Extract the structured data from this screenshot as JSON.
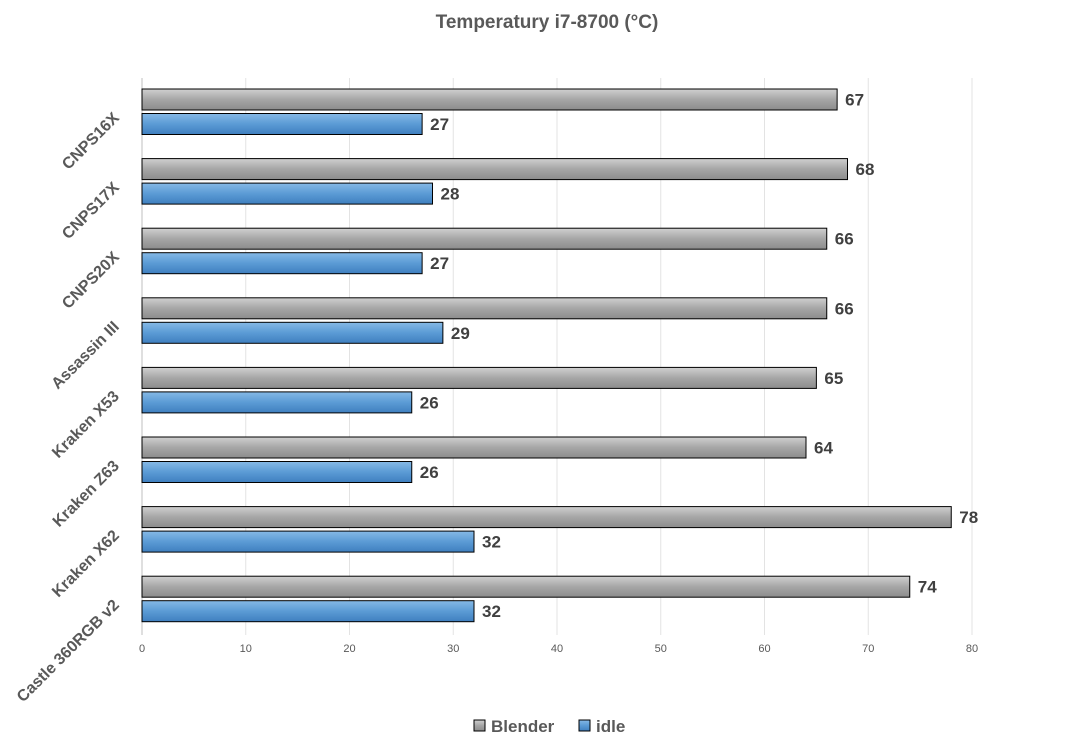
{
  "chart_data": {
    "type": "bar",
    "orientation": "horizontal",
    "title": "Temperatury i7-8700 (°C)",
    "categories": [
      "CNPS16X",
      "CNPS17X",
      "CNPS20X",
      "Assassin III",
      "Kraken X53",
      "Kraken Z63",
      "Kraken X62",
      "Castle 360RGB v2"
    ],
    "series": [
      {
        "name": "Blender",
        "color": "#a6a6a6",
        "values": [
          67,
          68,
          66,
          66,
          65,
          64,
          78,
          74
        ]
      },
      {
        "name": "idle",
        "color": "#5b9bd5",
        "values": [
          27,
          28,
          27,
          29,
          26,
          26,
          32,
          32
        ]
      }
    ],
    "xlim": [
      0,
      80
    ],
    "xticks": [
      0,
      10,
      20,
      30,
      40,
      50,
      60,
      70,
      80
    ],
    "grid": true,
    "data_labels": true,
    "legend_position": "bottom"
  }
}
